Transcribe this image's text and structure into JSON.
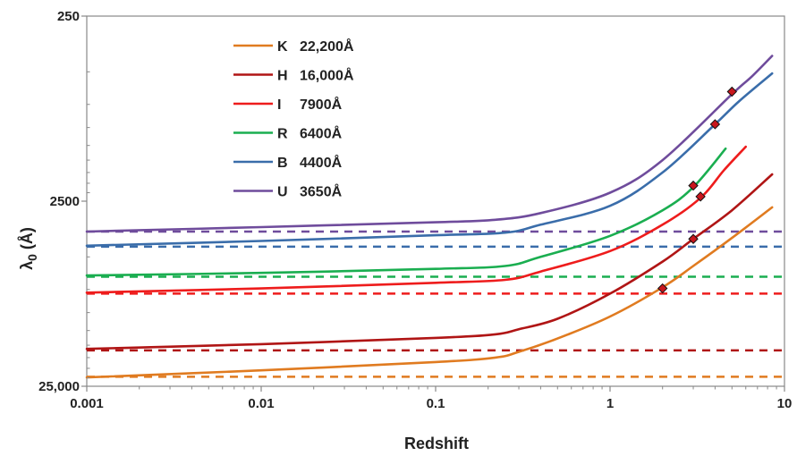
{
  "chart_data": {
    "type": "line",
    "title": "",
    "xlabel": "Redshift",
    "ylabel": "λ0 (Å)",
    "ylabel_main": "λ",
    "ylabel_sub": "0",
    "ylabel_unit": " (Å)",
    "x_scale": "log",
    "y_scale": "log-reversed",
    "xlim": [
      0.001,
      10
    ],
    "ylim": [
      25000,
      250
    ],
    "x_ticks": [
      0.001,
      0.01,
      0.1,
      1,
      10
    ],
    "x_tick_labels": [
      "0.001",
      "0.01",
      "0.1",
      "1",
      "10"
    ],
    "y_ticks": [
      250,
      2500,
      25000
    ],
    "y_tick_labels": [
      "250",
      "2500",
      "25,000"
    ],
    "grid": false,
    "legend_position": "top-left",
    "series": [
      {
        "name": "K",
        "label": "22,200Å",
        "color": "#E07B20",
        "points": [
          [
            0.001,
            22400
          ],
          [
            0.01,
            20500
          ],
          [
            0.1,
            18500
          ],
          [
            0.22,
            17500
          ],
          [
            0.3,
            16300
          ],
          [
            0.5,
            13800
          ],
          [
            1,
            10500
          ],
          [
            2,
            7300
          ],
          [
            3,
            5600
          ],
          [
            5,
            3950
          ],
          [
            8.5,
            2700
          ]
        ],
        "rest_wavelength": 22200,
        "markers": [
          [
            2,
            7400
          ]
        ]
      },
      {
        "name": "H",
        "label": "16,000Å",
        "color": "#B01515",
        "points": [
          [
            0.001,
            15700
          ],
          [
            0.01,
            14800
          ],
          [
            0.1,
            13700
          ],
          [
            0.22,
            13100
          ],
          [
            0.3,
            12300
          ],
          [
            0.5,
            10800
          ],
          [
            1,
            7900
          ],
          [
            2,
            5300
          ],
          [
            3,
            4000
          ],
          [
            5,
            2800
          ],
          [
            8.5,
            1790
          ]
        ],
        "rest_wavelength": 16000,
        "markers": [
          [
            3,
            4000
          ]
        ]
      },
      {
        "name": "I",
        "label": "7900Å",
        "color": "#EE1C1C",
        "points": [
          [
            0.001,
            7800
          ],
          [
            0.01,
            7400
          ],
          [
            0.1,
            6900
          ],
          [
            0.25,
            6650
          ],
          [
            0.4,
            6000
          ],
          [
            1,
            4650
          ],
          [
            2,
            3350
          ],
          [
            3.3,
            2400
          ],
          [
            4.5,
            1700
          ],
          [
            6,
            1270
          ]
        ],
        "rest_wavelength": 7900,
        "markers": [
          [
            3.3,
            2360
          ]
        ]
      },
      {
        "name": "R",
        "label": "6400Å",
        "color": "#1AAE50",
        "points": [
          [
            0.001,
            6300
          ],
          [
            0.01,
            6100
          ],
          [
            0.1,
            5800
          ],
          [
            0.25,
            5600
          ],
          [
            0.4,
            5000
          ],
          [
            1,
            3850
          ],
          [
            2,
            2800
          ],
          [
            3,
            2100
          ],
          [
            4.6,
            1300
          ]
        ],
        "rest_wavelength": 6400,
        "markers": [
          [
            3,
            2060
          ]
        ]
      },
      {
        "name": "B",
        "label": "4400Å",
        "color": "#3A6DAA",
        "points": [
          [
            0.001,
            4350
          ],
          [
            0.01,
            4100
          ],
          [
            0.1,
            3820
          ],
          [
            0.25,
            3700
          ],
          [
            0.4,
            3350
          ],
          [
            1,
            2650
          ],
          [
            2,
            1750
          ],
          [
            4,
            960
          ],
          [
            5.5,
            720
          ],
          [
            8.5,
            510
          ]
        ],
        "rest_wavelength": 4400,
        "markers": [
          [
            4,
            960
          ]
        ]
      },
      {
        "name": "U",
        "label": "3650Å",
        "color": "#6F4C9C",
        "points": [
          [
            0.001,
            3650
          ],
          [
            0.01,
            3450
          ],
          [
            0.1,
            3250
          ],
          [
            0.22,
            3150
          ],
          [
            0.4,
            2900
          ],
          [
            1,
            2250
          ],
          [
            2,
            1500
          ],
          [
            5,
            660
          ],
          [
            6.5,
            530
          ],
          [
            8.5,
            410
          ]
        ],
        "rest_wavelength": 3650,
        "markers": [
          [
            5,
            640
          ]
        ]
      }
    ]
  },
  "marker_color": "#C8161D"
}
